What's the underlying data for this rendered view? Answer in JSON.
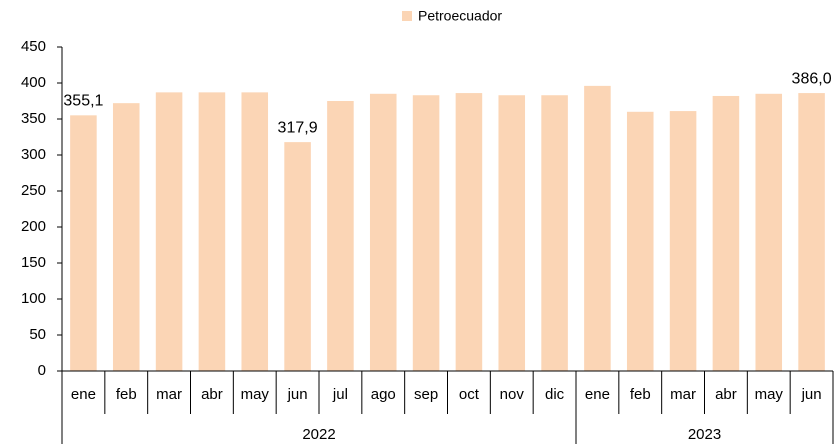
{
  "chart_data": {
    "type": "bar",
    "categories": [
      "ene",
      "feb",
      "mar",
      "abr",
      "may",
      "jun",
      "jul",
      "ago",
      "sep",
      "oct",
      "nov",
      "dic",
      "ene",
      "feb",
      "mar",
      "abr",
      "may",
      "jun"
    ],
    "groups": [
      {
        "name": "2022",
        "span": 12
      },
      {
        "name": "2023",
        "span": 6
      }
    ],
    "series": [
      {
        "name": "Petroecuador",
        "color": "#fbd5b5",
        "values": [
          355.1,
          372,
          387,
          387,
          387,
          317.9,
          375,
          385,
          383,
          386,
          383,
          383,
          396,
          360,
          361,
          382,
          385,
          386.0
        ],
        "value_labels": [
          "355,1",
          null,
          null,
          null,
          null,
          "317,9",
          null,
          null,
          null,
          null,
          null,
          null,
          null,
          null,
          null,
          null,
          null,
          "386,0"
        ]
      }
    ],
    "ylim": [
      0,
      450
    ],
    "yticks": [
      0,
      50,
      100,
      150,
      200,
      250,
      300,
      350,
      400,
      450
    ],
    "legend": "top"
  }
}
